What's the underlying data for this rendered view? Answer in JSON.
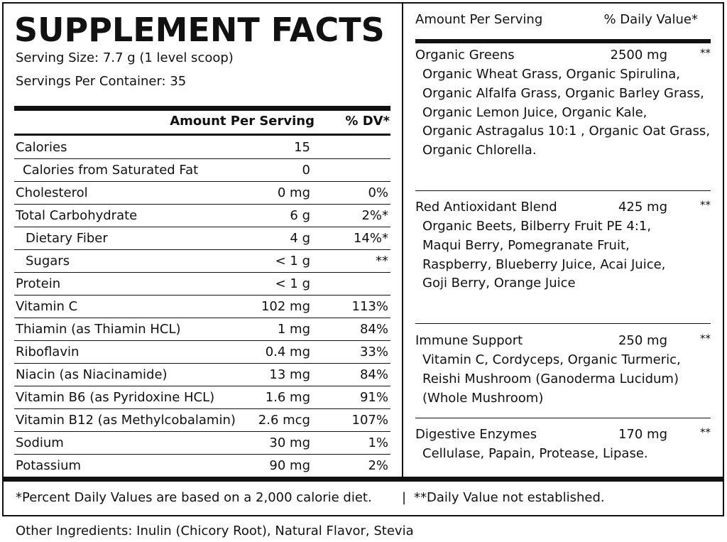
{
  "title": "SUPPLEMENT FACTS",
  "serving_size": "Serving Size:  7.7 g (1 level scoop)",
  "servings_per_container": "Servings Per Container:  35",
  "table": {
    "header": [
      "Amount Per Serving",
      "% DV*"
    ],
    "rows": [
      {
        "name": "Calories",
        "amount": "15"
      },
      {
        "name": "Calories from Saturated Fat",
        "amount": "0"
      },
      {
        "name": "Cholesterol",
        "amount": "0 mg",
        "dv": "0%"
      },
      {
        "name": "Total Carbohydrate",
        "amount": "6 g",
        "dv": "2%*"
      },
      {
        "name": "Dietary Fiber",
        "amount": "4 g",
        "dv": "14%*"
      },
      {
        "name": "Sugars",
        "amount": "< 1 g",
        "dv": "**"
      },
      {
        "name": "Protein",
        "amount": "< 1 g"
      },
      {
        "name": "Vitamin C",
        "amount": "102 mg",
        "dv": "113%"
      },
      {
        "name": "Thiamin (as Thiamin HCL)",
        "amount": "1 mg",
        "dv": "84%"
      },
      {
        "name": "Riboflavin",
        "amount": "0.4 mg",
        "dv": "33%"
      },
      {
        "name": "Niacin (as Niacinamide)",
        "amount": "13 mg",
        "dv": "84%"
      },
      {
        "name": "Vitamin B6 (as Pyridoxine HCL)",
        "amount": "1.6 mg",
        "dv": "91%"
      },
      {
        "name": "Vitamin B12 (as Methylcobalamin)",
        "amount": "2.6 mcg",
        "dv": "107%"
      },
      {
        "name": "Sodium",
        "amount": "30 mg",
        "dv": "1%"
      },
      {
        "name": "Potassium",
        "amount": "90 mg",
        "dv": "2%"
      }
    ]
  },
  "blends": {
    "header": [
      "Amount Per Serving",
      "% Daily Value*"
    ],
    "items": [
      {
        "name": "Organic Greens",
        "amount": "2500 mg",
        "dv": "**",
        "ingredients": [
          "Organic Wheat Grass, Organic Spirulina,",
          "Organic Alfalfa Grass, Organic Barley Grass,",
          "Organic Lemon Juice, Organic Kale,",
          "Organic Astragalus 10:1 , Organic Oat Grass,",
          "Organic Chlorella."
        ]
      },
      {
        "name": "Red Antioxidant Blend",
        "amount": "425 mg",
        "dv": "**",
        "ingredients": [
          "Organic Beets, Bilberry Fruit PE 4:1,",
          "Maqui Berry, Pomegranate Fruit,",
          "Raspberry, Blueberry Juice, Acai Juice,",
          "Goji Berry, Orange Juice"
        ]
      },
      {
        "name": "Immune Support",
        "amount": "250 mg",
        "dv": "**",
        "ingredients": [
          "Vitamin C, Cordyceps, Organic Turmeric,",
          "Reishi Mushroom (Ganoderma Lucidum)",
          "(Whole Mushroom)"
        ]
      },
      {
        "name": "Digestive Enzymes",
        "amount": "170 mg",
        "dv": "**",
        "ingredients": [
          "Cellulase, Papain, Protease, Lipase."
        ]
      }
    ]
  },
  "footnote": {
    "left": "*Percent Daily Values are based on a 2,000 calorie diet.",
    "separator": "|",
    "right": "**Daily Value not established."
  },
  "other_ingredients": "Other Ingredients: Inulin (Chicory Root), Natural Flavor, Stevia"
}
